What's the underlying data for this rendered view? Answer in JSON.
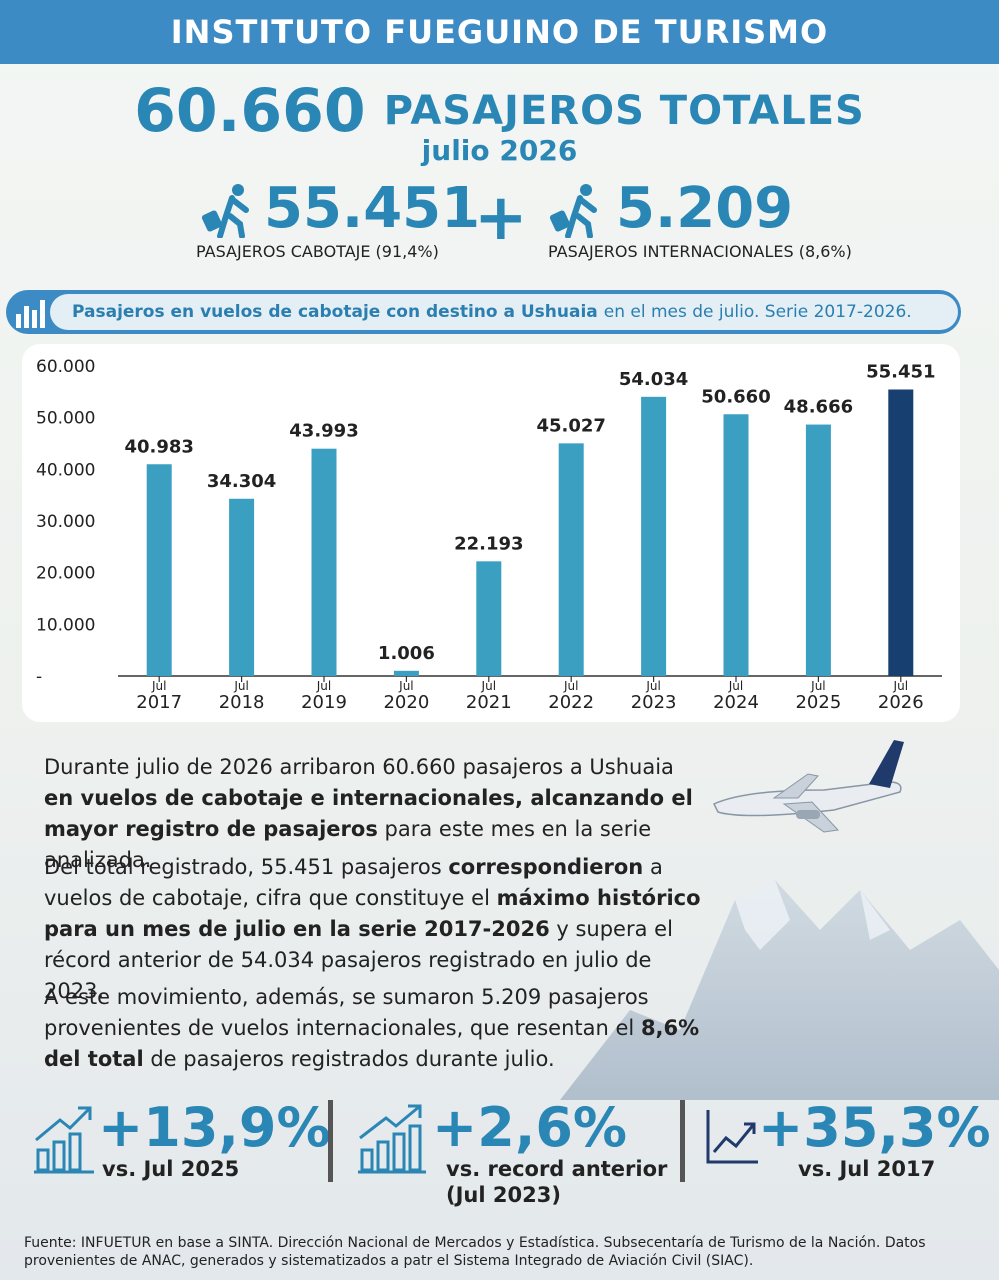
{
  "header": {
    "title": "INSTITUTO FUEGUINO DE TURISMO"
  },
  "headline": {
    "total": "60.660",
    "label": "PASAJEROS TOTALES",
    "month": "julio 2026"
  },
  "split": {
    "domestic": {
      "value": "55.451",
      "caption": "PASAJEROS CABOTAJE (91,4%)"
    },
    "plus": "+",
    "international": {
      "value": "5.209",
      "caption": "PASAJEROS INTERNACIONALES (8,6%)"
    }
  },
  "chart_title": {
    "bold": "Pasajeros en vuelos de cabotaje con destino a Ushuaia",
    "rest": "en el mes de julio. Serie 2017-2026."
  },
  "chart_data": {
    "type": "bar",
    "categories": [
      "2017",
      "2018",
      "2019",
      "2020",
      "2021",
      "2022",
      "2023",
      "2024",
      "2025",
      "2026"
    ],
    "month_label": "Jul",
    "values": [
      40983,
      34304,
      43993,
      1006,
      22193,
      45027,
      54034,
      50660,
      48666,
      55451
    ],
    "value_labels": [
      "40.983",
      "34.304",
      "43.993",
      "1.006",
      "22.193",
      "45.027",
      "54.034",
      "50.660",
      "48.666",
      "55.451"
    ],
    "ylim": [
      0,
      60000
    ],
    "yticks": [
      "-",
      "10.000",
      "20.000",
      "30.000",
      "40.000",
      "50.000",
      "60.000"
    ],
    "bar_color": "#3a9fc0",
    "highlight_color": "#173f70",
    "highlight_index": 9,
    "grid": false
  },
  "paragraphs": {
    "p1": [
      {
        "t": "Durante julio de 2026 arribaron 60.660 pasajeros a Ushuaia ",
        "b": false
      },
      {
        "t": "en vuelos de cabotaje e internacionales, alcanzando el mayor registro de pasajeros",
        "b": true
      },
      {
        "t": " para este mes en la serie analizada.",
        "b": false
      }
    ],
    "p2": [
      {
        "t": "Del total registrado, 55.451 pasajeros ",
        "b": false
      },
      {
        "t": "correspondieron",
        "b": true
      },
      {
        "t": " a vuelos de cabotaje, cifra que constituye el ",
        "b": false
      },
      {
        "t": "máximo histórico para un mes de julio en la serie 2017-2026",
        "b": true
      },
      {
        "t": " y supera el récord anterior de 54.034 pasajeros registrado en julio de 2023.",
        "b": false
      }
    ],
    "p3": [
      {
        "t": "A este movimiento, además, se sumaron 5.209 pasajeros provenientes de vuelos internacionales, que resentan el ",
        "b": false
      },
      {
        "t": "8,6% del total",
        "b": true
      },
      {
        "t": " de pasajeros registrados durante julio.",
        "b": false
      }
    ]
  },
  "stats": [
    {
      "value": "+13,9%",
      "caption": "vs. Jul 2025",
      "caption2": ""
    },
    {
      "value": "+2,6%",
      "caption": "vs. record anterior",
      "caption2": "(Jul 2023)"
    },
    {
      "value": "+35,3%",
      "caption": "vs. Jul 2017",
      "caption2": ""
    }
  ],
  "footer": {
    "line1": "Fuente: INFUETUR en base a SINTA. Dirección Nacional de Mercados y Estadística. Subsecentaría de Turismo de la Nación. Datos",
    "line2": "provenientes de ANAC, generados y sistematizados a patr el Sistema Integrado de Aviación Civil (SIAC)."
  },
  "colors": {
    "brand": "#3d8bc4",
    "accent": "#2a86b4"
  }
}
